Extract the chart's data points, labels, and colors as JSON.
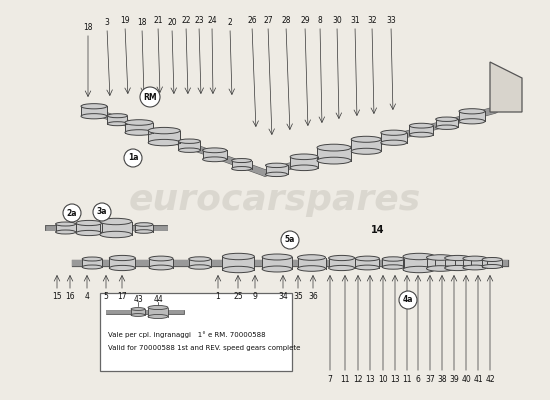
{
  "bg_color": "#eeebe4",
  "watermark": "eurocarspares",
  "note_line1": "Vale per cpl. ingranaggi   1° e RM. 70000588",
  "note_line2": "Valid for 70000588 1st and REV. speed gears complete",
  "top_labels": [
    "18",
    "3",
    "19",
    "18",
    "21",
    "20",
    "22",
    "23",
    "24",
    "2",
    "26",
    "27",
    "28",
    "29",
    "8",
    "30",
    "31",
    "32",
    "33"
  ],
  "bottom_labels_left": [
    "15",
    "16",
    "4",
    "5",
    "17"
  ],
  "bottom_labels_center": [
    "1",
    "25",
    "9",
    "34",
    "35",
    "36"
  ],
  "bottom_labels_right": [
    "7",
    "11",
    "12",
    "13",
    "10",
    "13",
    "11",
    "6",
    "37",
    "38",
    "39",
    "40",
    "41",
    "42"
  ],
  "bubble_labels_rm": "RM",
  "bubble_labels_1a": "1a",
  "bubble_labels_2a": "2a",
  "bubble_labels_3a": "3a",
  "bubble_labels_5a": "5a",
  "bubble_labels_4a": "4a",
  "bubble_label_14": "14",
  "label_43": "43",
  "label_44": "44",
  "arrow_color": "#333333",
  "shaft_color": "#999999",
  "gear_fill": "#cccccc",
  "gear_edge": "#444444",
  "outline_color": "#333333",
  "text_color": "#111111",
  "note_box_border": "#555555",
  "watermark_color": "#c8c4bc"
}
